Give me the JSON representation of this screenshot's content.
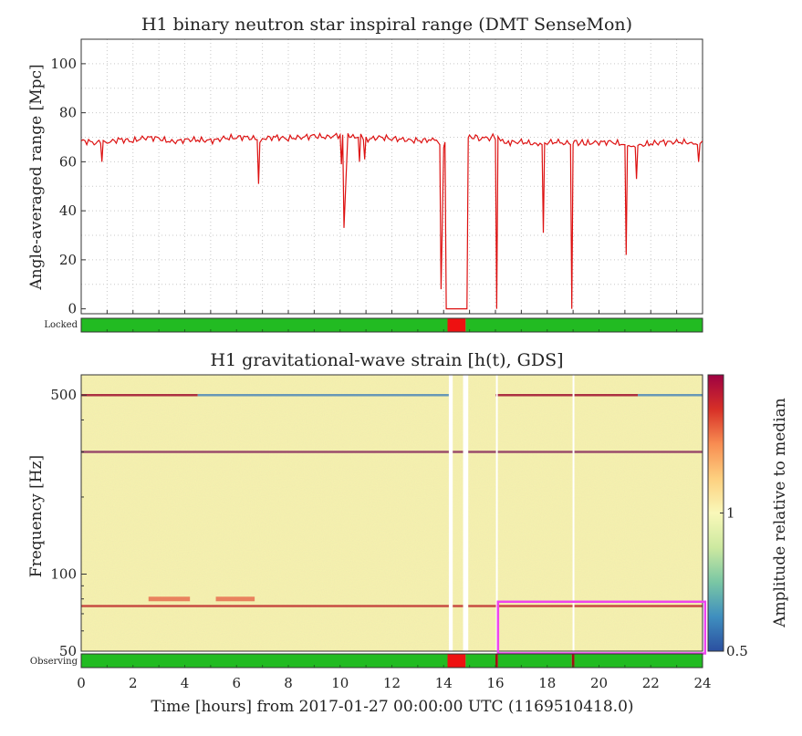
{
  "chart_data": [
    {
      "type": "line",
      "title": "H1 binary neutron star inspiral range (DMT SenseMon)",
      "xlabel": "",
      "ylabel": "Angle-averaged range [Mpc]",
      "xlim": [
        0,
        24
      ],
      "ylim": [
        -2,
        110
      ],
      "yticks": [
        0,
        20,
        40,
        60,
        80,
        100
      ],
      "grid": true,
      "series": [
        {
          "color": "#dd1111",
          "x": [
            0,
            0.5,
            0.75,
            0.8,
            0.85,
            1,
            1.5,
            2,
            2.5,
            3,
            3.5,
            4,
            4.5,
            5,
            5.5,
            6,
            6.5,
            6.8,
            6.85,
            6.9,
            7,
            7.5,
            8,
            8.5,
            9,
            9.5,
            10,
            10.05,
            10.1,
            10.15,
            10.3,
            10.5,
            10.7,
            10.75,
            10.8,
            10.9,
            10.95,
            11,
            11.5,
            12,
            12.5,
            13,
            13.5,
            13.8,
            13.85,
            13.9,
            14.0,
            14.05,
            14.1,
            14.15,
            14.9,
            14.95,
            15.0,
            15.1,
            15.5,
            15.9,
            16.0,
            16.05,
            16.1,
            16.2,
            16.5,
            17,
            17.5,
            17.8,
            17.85,
            17.9,
            18,
            18.5,
            18.9,
            18.95,
            19.0,
            19.05,
            19.5,
            20,
            20.5,
            21,
            21.05,
            21.1,
            21.15,
            21.4,
            21.45,
            21.5,
            22,
            22.5,
            23,
            23.5,
            23.8,
            23.85,
            23.9,
            24
          ],
          "y": [
            68.5,
            68,
            67.5,
            60,
            67.5,
            68,
            69,
            68.5,
            70,
            69.5,
            68,
            69,
            69,
            68.5,
            69.5,
            70,
            70,
            69,
            51,
            69,
            69.5,
            70,
            69.5,
            70,
            70.5,
            70,
            71,
            59,
            71,
            33,
            71,
            71,
            70,
            60,
            70,
            69,
            61,
            69,
            70,
            69.5,
            69,
            68.5,
            69,
            69,
            67,
            8,
            67,
            68,
            0,
            0,
            0,
            70,
            70,
            70,
            69.5,
            70,
            69,
            0,
            69,
            68.5,
            68,
            68,
            67.5,
            67,
            31,
            67,
            68,
            68,
            67,
            0,
            67,
            68,
            67.5,
            68,
            68,
            67,
            22,
            67,
            67,
            66,
            53,
            66.5,
            67.5,
            68,
            68,
            68,
            67,
            60,
            67,
            68.5
          ]
        }
      ],
      "status_bar": {
        "label": "Locked",
        "segments": [
          {
            "start": 0,
            "end": 14.15,
            "state": "on"
          },
          {
            "start": 14.15,
            "end": 14.85,
            "state": "off"
          },
          {
            "start": 14.85,
            "end": 24,
            "state": "on"
          }
        ],
        "colors": {
          "on": "#22bb22",
          "off": "#ee1111"
        }
      }
    },
    {
      "type": "heatmap",
      "title": "H1 gravitational-wave strain [h(t), GDS]",
      "xlabel": "Time [hours] from 2017-01-27 00:00:00 UTC (1169510418.0)",
      "ylabel": "Frequency [Hz]",
      "xlim": [
        0,
        24
      ],
      "ylim": [
        50,
        600
      ],
      "yscale": "log",
      "yticks": [
        50,
        100,
        500
      ],
      "xticks": [
        0,
        2,
        4,
        6,
        8,
        10,
        12,
        14,
        16,
        18,
        20,
        22,
        24
      ],
      "colorbar": {
        "label": "Amplitude relative to median",
        "range": [
          0.5,
          2
        ],
        "ticks": [
          0.5,
          1
        ],
        "colormap": [
          "#2b4fa0",
          "#3f8fbf",
          "#7ac7a4",
          "#cde9a0",
          "#f9f8b9",
          "#fdd07f",
          "#f88d52",
          "#d73027",
          "#9e0142"
        ]
      },
      "gaps": [
        [
          14.2,
          14.35
        ],
        [
          14.75,
          14.95
        ],
        [
          16.02,
          16.05
        ],
        [
          18.98,
          19.02
        ]
      ],
      "lines": [
        {
          "freq": 500,
          "start": 0,
          "end": 4.5,
          "color": "#a01030"
        },
        {
          "freq": 500,
          "start": 4.5,
          "end": 14.2,
          "color": "#4f8ab8"
        },
        {
          "freq": 500,
          "start": 16,
          "end": 21.5,
          "color": "#a01030"
        },
        {
          "freq": 500,
          "start": 21.5,
          "end": 24,
          "color": "#4f8ab8"
        },
        {
          "freq": 300,
          "start": 0,
          "end": 24,
          "color": "#8b3060"
        },
        {
          "freq": 75,
          "start": 0,
          "end": 24,
          "color": "#c03030"
        },
        {
          "freq": 80,
          "start": 2.6,
          "end": 4.2,
          "color": "#e87050"
        },
        {
          "freq": 80,
          "start": 5.2,
          "end": 6.7,
          "color": "#e87050"
        }
      ],
      "highlight": {
        "x": [
          16.1,
          24.1
        ],
        "y": [
          49,
          78
        ],
        "color": "#ee44ee"
      },
      "status_bar": {
        "label": "Observing",
        "segments": [
          {
            "start": 0,
            "end": 14.15,
            "state": "on"
          },
          {
            "start": 14.15,
            "end": 14.85,
            "state": "off"
          },
          {
            "start": 14.85,
            "end": 16.0,
            "state": "on"
          },
          {
            "start": 16.0,
            "end": 16.1,
            "state": "blip"
          },
          {
            "start": 16.1,
            "end": 18.95,
            "state": "on"
          },
          {
            "start": 18.95,
            "end": 19.05,
            "state": "blip"
          },
          {
            "start": 19.05,
            "end": 24,
            "state": "on"
          }
        ],
        "colors": {
          "on": "#22bb22",
          "off": "#ee1111",
          "blip": "#a01010"
        }
      }
    }
  ]
}
